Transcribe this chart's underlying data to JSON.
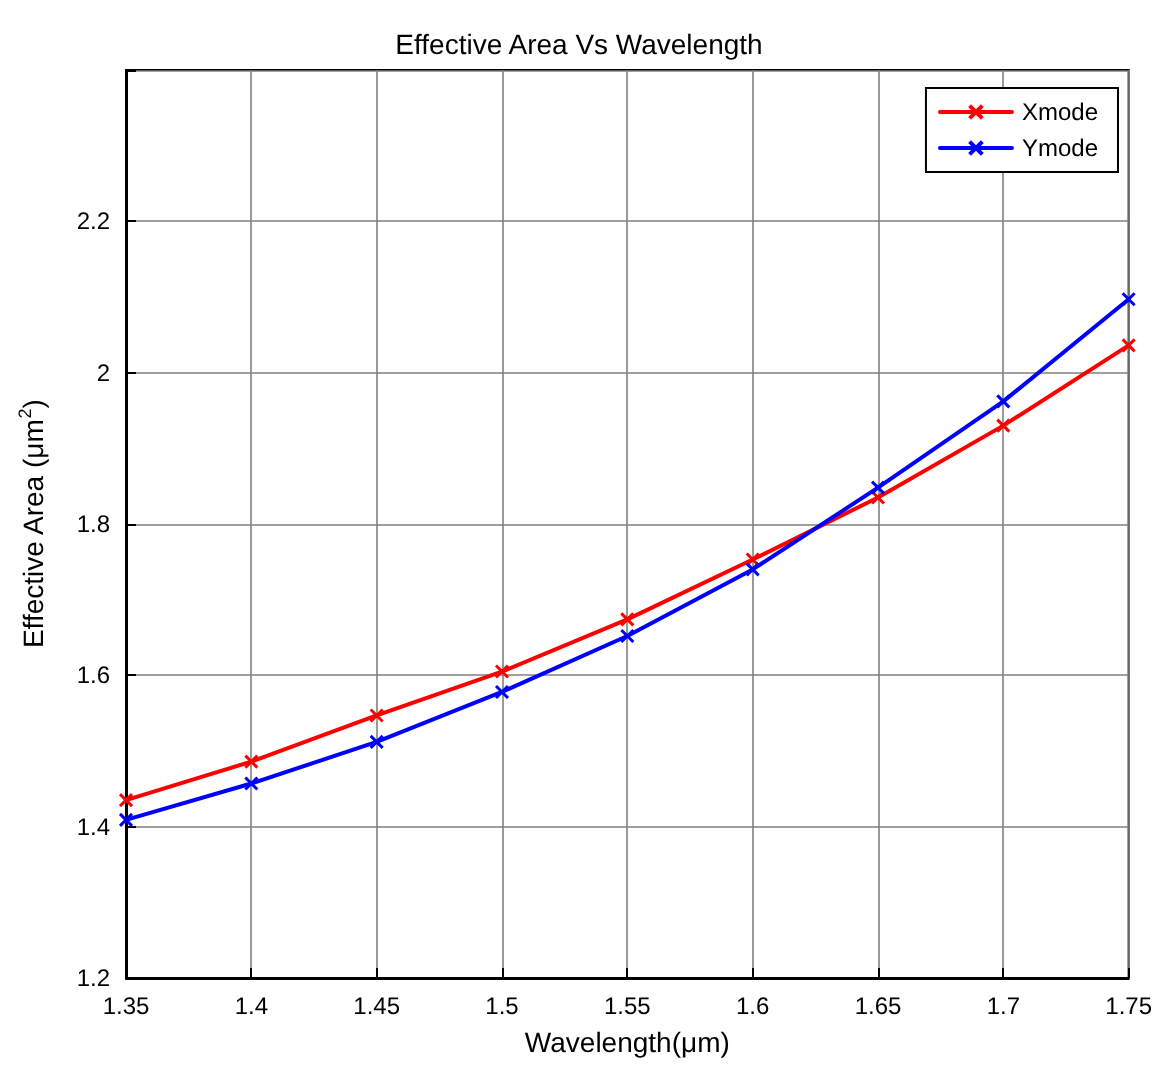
{
  "chart_data": {
    "type": "line",
    "title": "Effective Area Vs Wavelength",
    "xlabel": "Wavelength(μm)",
    "ylabel": "Effective Area (μm$^{2}$)",
    "x": [
      1.35,
      1.4,
      1.45,
      1.5,
      1.55,
      1.6,
      1.65,
      1.7,
      1.75
    ],
    "series": [
      {
        "name": "Xmode",
        "color": "#ff0000",
        "values": [
          1.435,
          1.486,
          1.547,
          1.605,
          1.674,
          1.753,
          1.835,
          1.93,
          2.036
        ]
      },
      {
        "name": "Ymode",
        "color": "#0000ff",
        "values": [
          1.409,
          1.457,
          1.512,
          1.578,
          1.652,
          1.74,
          1.848,
          1.962,
          2.097
        ]
      }
    ],
    "xlim": [
      1.35,
      1.75
    ],
    "xticks": [
      1.35,
      1.4,
      1.45,
      1.5,
      1.55,
      1.6,
      1.65,
      1.7,
      1.75
    ],
    "ylim": [
      1.2,
      2.4
    ],
    "yticks": [
      1.2,
      1.4,
      1.6,
      1.8,
      2,
      2.2,
      {
        "value": 2.4,
        "label": null
      }
    ],
    "grid": true,
    "legend": "top right",
    "marker": "cross",
    "line_style": "solid"
  }
}
